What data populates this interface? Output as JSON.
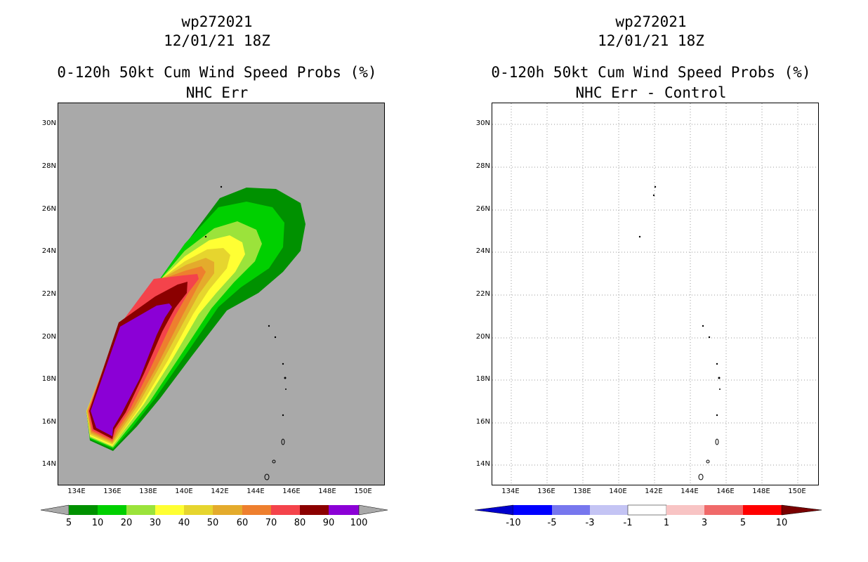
{
  "left_panel": {
    "storm_id": "wp272021",
    "datetime": "12/01/21 18Z",
    "product": "0-120h 50kt Cum Wind Speed Probs (%)",
    "subtitle": "NHC Err",
    "lat_labels": [
      "14N",
      "16N",
      "18N",
      "20N",
      "22N",
      "24N",
      "26N",
      "28N",
      "30N"
    ],
    "lon_labels": [
      "134E",
      "136E",
      "138E",
      "140E",
      "142E",
      "144E",
      "146E",
      "148E",
      "150E"
    ],
    "colorbar": {
      "labels": [
        "5",
        "10",
        "20",
        "30",
        "40",
        "50",
        "60",
        "70",
        "80",
        "90",
        "100"
      ],
      "colors": [
        "#009100",
        "#00d000",
        "#9be33b",
        "#ffff33",
        "#e6d52e",
        "#e4ab2c",
        "#ee7f2e",
        "#f4434b",
        "#8b0000",
        "#8b00d6"
      ]
    }
  },
  "right_panel": {
    "storm_id": "wp272021",
    "datetime": "12/01/21 18Z",
    "product": "0-120h 50kt Cum Wind Speed Probs (%)",
    "subtitle": "NHC Err - Control",
    "lat_labels": [
      "14N",
      "16N",
      "18N",
      "20N",
      "22N",
      "24N",
      "26N",
      "28N",
      "30N"
    ],
    "lon_labels": [
      "134E",
      "136E",
      "138E",
      "140E",
      "142E",
      "144E",
      "146E",
      "148E",
      "150E"
    ],
    "colorbar": {
      "labels": [
        "-10",
        "-5",
        "-3",
        "-1",
        "1",
        "3",
        "5",
        "10"
      ],
      "colors": [
        "#0000cd",
        "#0000ff",
        "#7777ee",
        "#c4c4f4",
        "#ffffff",
        "#f8c4c4",
        "#f06a6a",
        "#ff0000",
        "#7a0000"
      ]
    }
  }
}
